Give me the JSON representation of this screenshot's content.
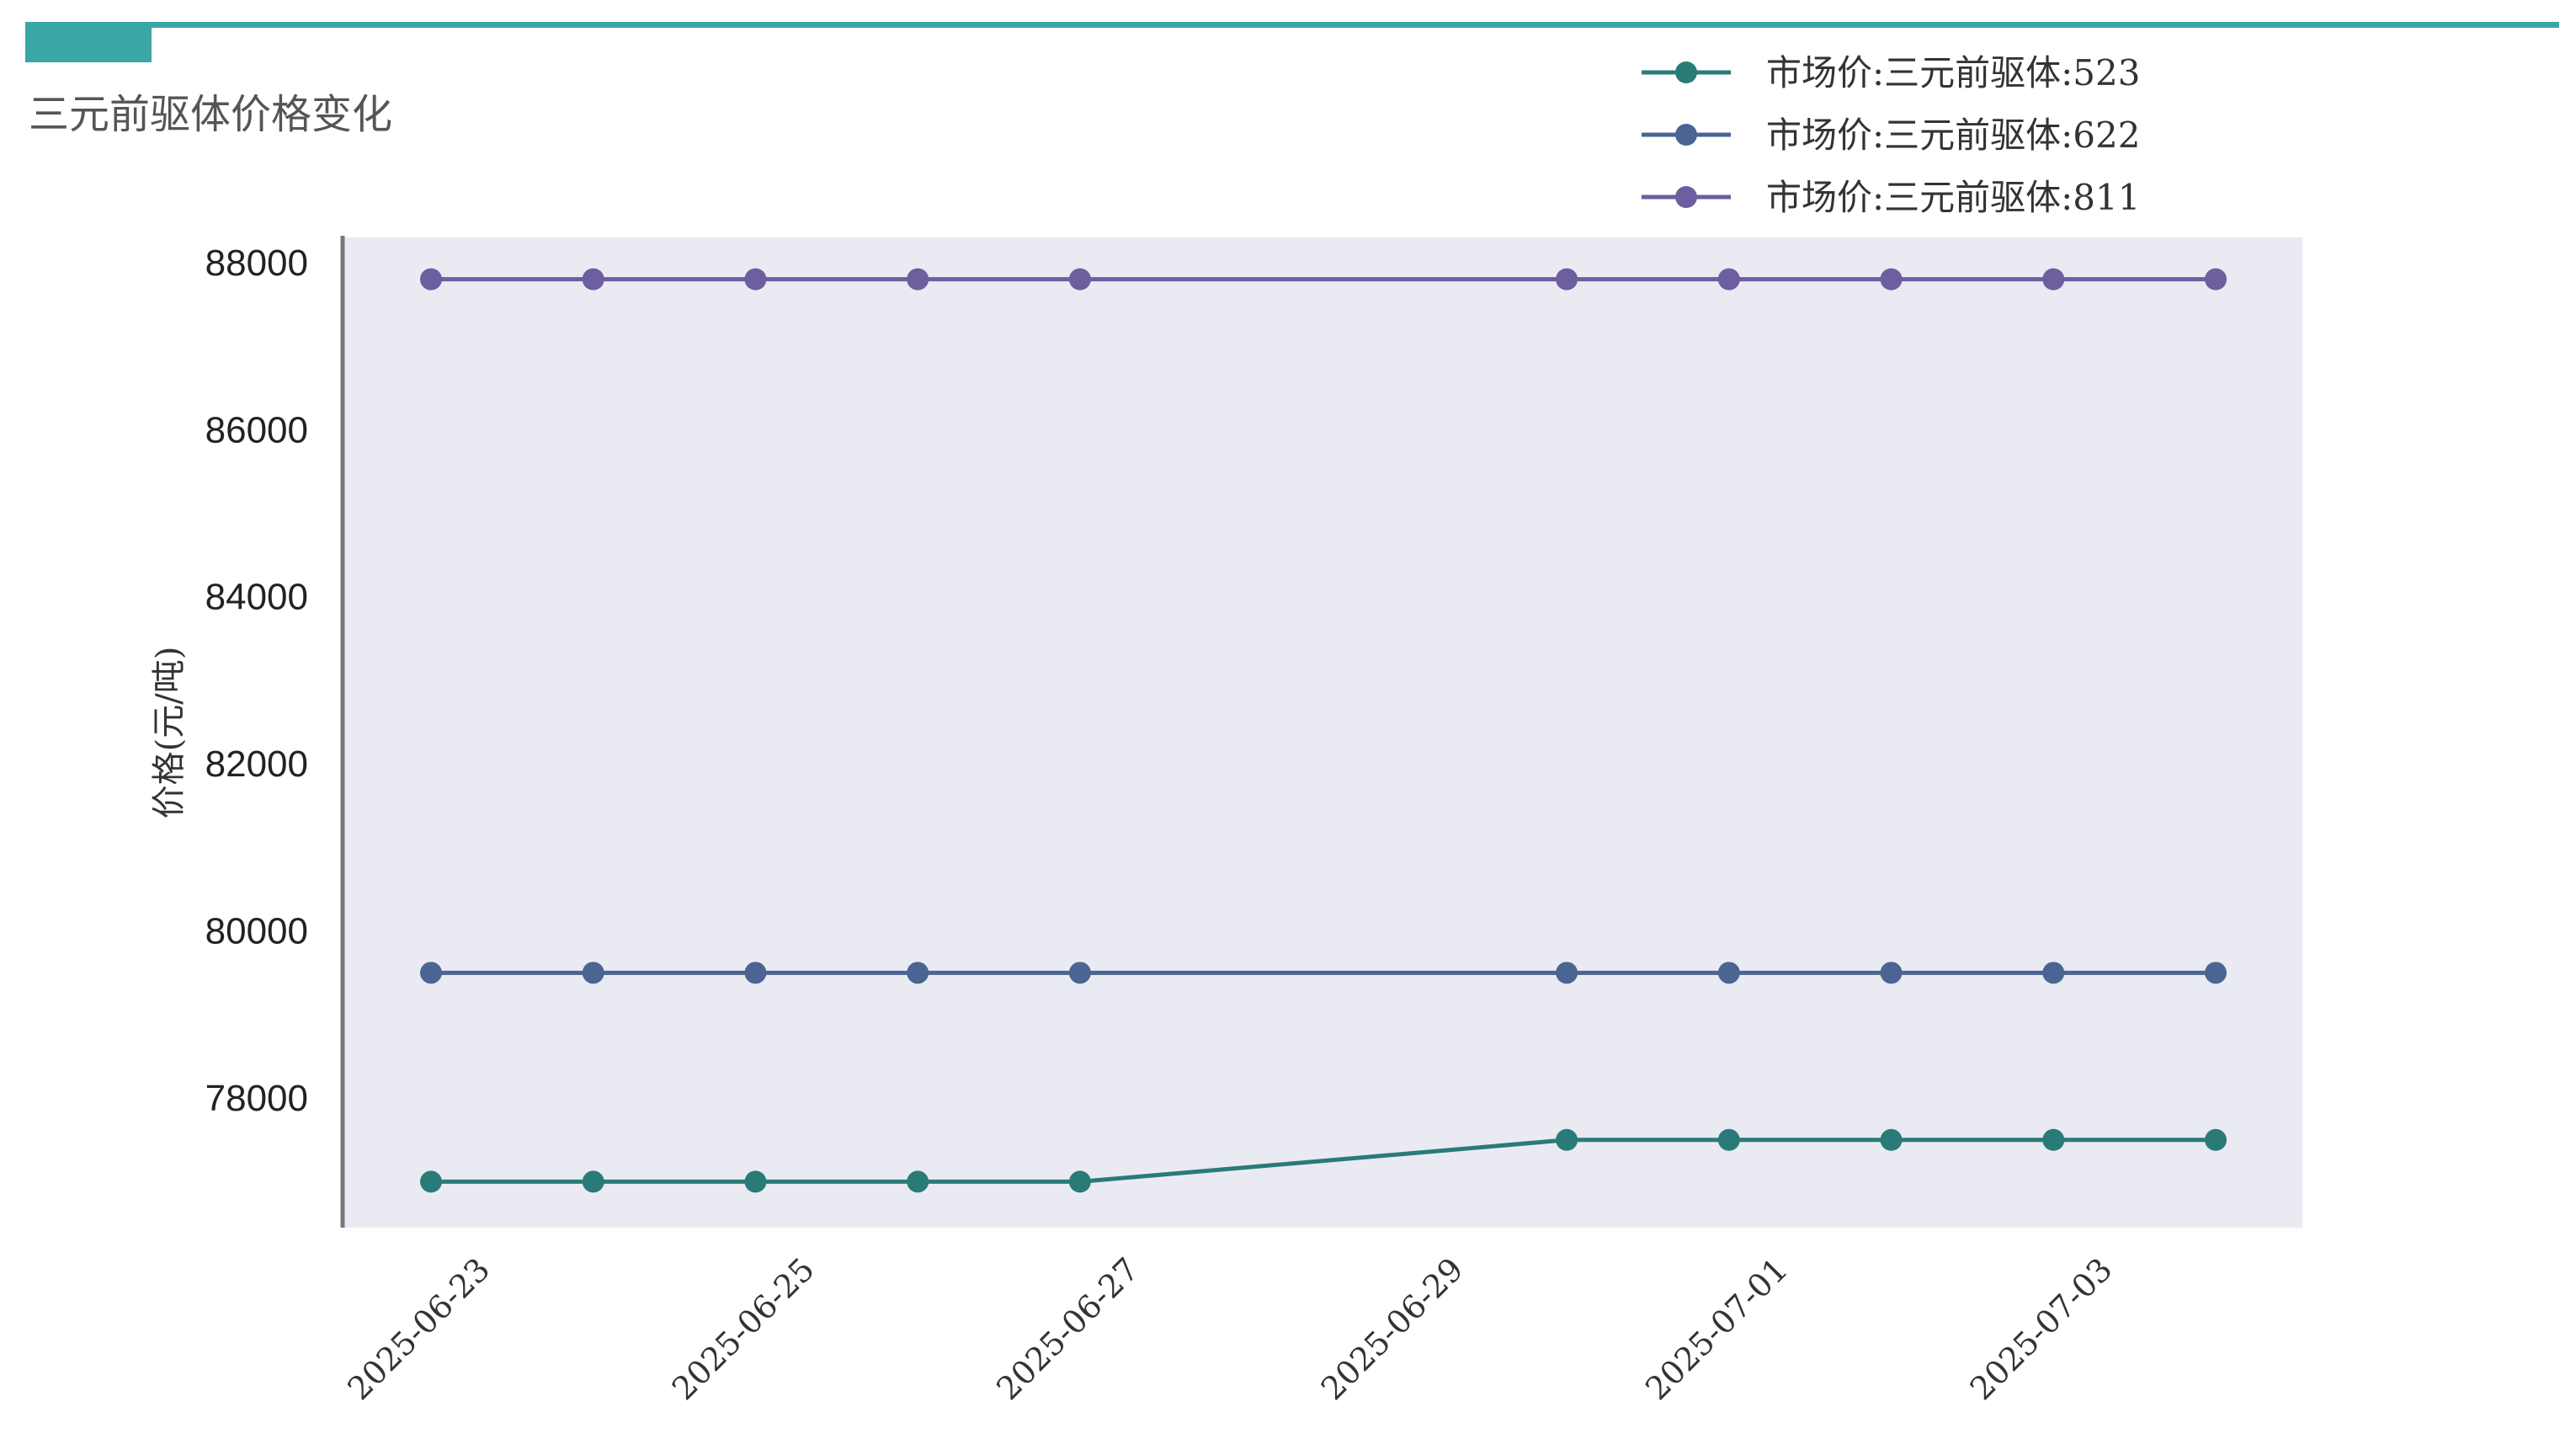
{
  "chart_data": {
    "type": "line",
    "title": "三元前驱体价格变化",
    "xlabel": "",
    "ylabel": "价格(元/吨)",
    "x": [
      "2025-06-23",
      "2025-06-24",
      "2025-06-25",
      "2025-06-26",
      "2025-06-27",
      "2025-06-30",
      "2025-07-01",
      "2025-07-02",
      "2025-07-03",
      "2025-07-04"
    ],
    "x_range": [
      "2025-06-23",
      "2025-07-04"
    ],
    "x_ticks": [
      "2025-06-23",
      "2025-06-25",
      "2025-06-27",
      "2025-06-29",
      "2025-07-01",
      "2025-07-03"
    ],
    "ylim": [
      76450,
      88300
    ],
    "y_ticks": [
      78000,
      80000,
      82000,
      84000,
      86000,
      88000
    ],
    "grid": false,
    "legend_position": "top-right",
    "series": [
      {
        "name": "市场价:三元前驱体:523",
        "color": "#2a7b78",
        "values": [
          77000,
          77000,
          77000,
          77000,
          77000,
          77500,
          77500,
          77500,
          77500,
          77500
        ]
      },
      {
        "name": "市场价:三元前驱体:622",
        "color": "#4a6593",
        "values": [
          79500,
          79500,
          79500,
          79500,
          79500,
          79500,
          79500,
          79500,
          79500,
          79500
        ]
      },
      {
        "name": "市场价:三元前驱体:811",
        "color": "#6d5e9f",
        "values": [
          87800,
          87800,
          87800,
          87800,
          87800,
          87800,
          87800,
          87800,
          87800,
          87800
        ]
      }
    ]
  },
  "colors": {
    "accent_bar": "#3aa6a6",
    "plot_background": "#eaeaf2",
    "axis_line": "#777777"
  }
}
